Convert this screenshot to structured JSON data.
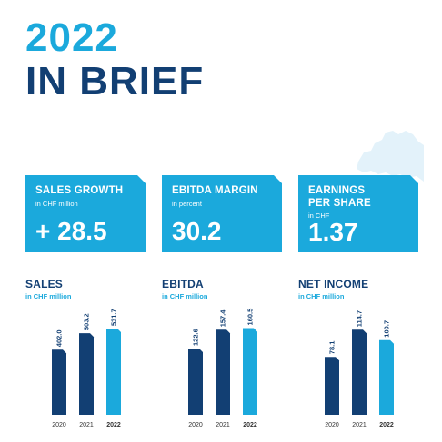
{
  "header": {
    "year": "2022",
    "subtitle": "IN BRIEF"
  },
  "colors": {
    "light_blue": "#1ba9dc",
    "dark_blue": "#123f73",
    "map_tint": "#e3f2fa"
  },
  "kpis": [
    {
      "title": "SALES GROWTH",
      "unit": "in CHF million",
      "value": "+ 28.5"
    },
    {
      "title": "EBITDA MARGIN",
      "unit": "in percent",
      "value": "30.2"
    },
    {
      "title": "EARNINGS PER SHARE",
      "title_line1": "EARNINGS",
      "title_line2": "PER SHARE",
      "unit": "in CHF",
      "value": "1.37"
    }
  ],
  "chart_data": [
    {
      "type": "bar",
      "title": "SALES",
      "unit": "in CHF million",
      "categories": [
        "2020",
        "2021",
        "2022"
      ],
      "values": [
        402.0,
        503.2,
        531.7
      ],
      "labels": [
        "402.0",
        "503.2",
        "531.7"
      ],
      "highlight_index": 2,
      "ylim": [
        0,
        700
      ]
    },
    {
      "type": "bar",
      "title": "EBITDA",
      "unit": "in CHF million",
      "categories": [
        "2020",
        "2021",
        "2022"
      ],
      "values": [
        122.6,
        157.4,
        160.5
      ],
      "labels": [
        "122.6",
        "157.4",
        "160.5"
      ],
      "highlight_index": 2,
      "ylim": [
        0,
        210
      ]
    },
    {
      "type": "bar",
      "title": "NET INCOME",
      "unit": "in CHF million",
      "categories": [
        "2020",
        "2021",
        "2022"
      ],
      "values": [
        78.1,
        114.7,
        100.7
      ],
      "labels": [
        "78.1",
        "114.7",
        "100.7"
      ],
      "highlight_index": 2,
      "ylim": [
        0,
        153
      ]
    }
  ]
}
